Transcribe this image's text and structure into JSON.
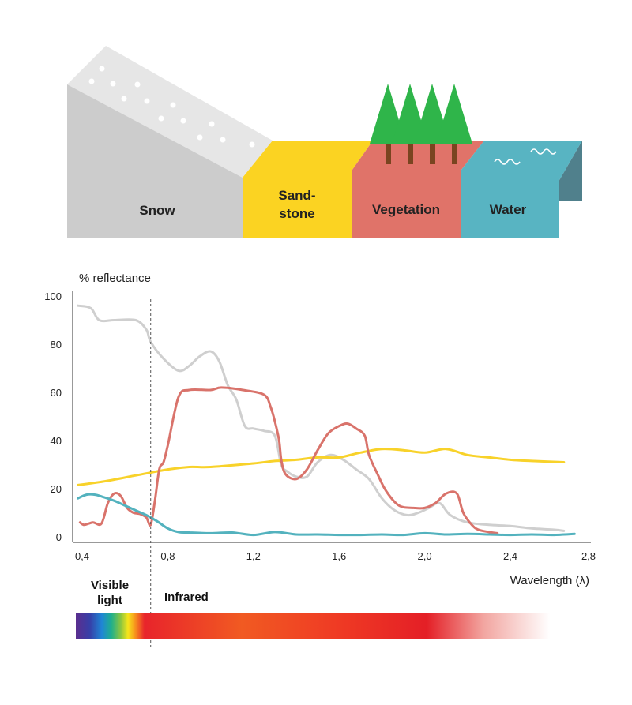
{
  "illustration": {
    "surfaces": [
      {
        "id": "snow",
        "lines": [
          "Snow"
        ],
        "color": "#cccccc"
      },
      {
        "id": "sandstone",
        "lines": [
          "Sand-",
          "stone"
        ],
        "color": "#fbd322"
      },
      {
        "id": "vegetation",
        "lines": [
          "Vegetation"
        ],
        "color": "#e07369"
      },
      {
        "id": "water",
        "lines": [
          "Water"
        ],
        "color": "#58b4c2"
      }
    ],
    "colors": {
      "snow_top": "#e6e6e6",
      "trees": "#2fb54a",
      "trunks": "#7a4420",
      "water_side": "#50808c"
    }
  },
  "chart_data": {
    "type": "line",
    "title": "",
    "ylabel": "% reflectance",
    "xlabel": "Wavelength (λ)",
    "xlim": [
      0.38,
      2.8
    ],
    "ylim": [
      0,
      100
    ],
    "xticks": [
      0.4,
      0.8,
      1.2,
      1.6,
      2.0,
      2.4,
      2.8
    ],
    "xtick_labels": [
      "0,4",
      "0,8",
      "1,2",
      "1,6",
      "2,0",
      "2,4",
      "2,8"
    ],
    "yticks": [
      0,
      20,
      40,
      60,
      80,
      100
    ],
    "ytick_labels": [
      "0",
      "20",
      "40",
      "60",
      "80",
      "100"
    ],
    "visible_boundary_x": 0.72,
    "series": [
      {
        "id": "snow",
        "color": "#cfcfcf",
        "x": [
          0.38,
          0.44,
          0.48,
          0.55,
          0.65,
          0.7,
          0.72,
          0.78,
          0.85,
          0.9,
          0.95,
          1.0,
          1.04,
          1.08,
          1.12,
          1.16,
          1.2,
          1.25,
          1.3,
          1.33,
          1.36,
          1.4,
          1.45,
          1.5,
          1.56,
          1.62,
          1.68,
          1.74,
          1.8,
          1.86,
          1.92,
          1.97,
          2.02,
          2.07,
          2.12,
          2.2,
          2.3,
          2.4,
          2.5,
          2.6,
          2.65
        ],
        "y": [
          96,
          95,
          90,
          90,
          90,
          86,
          81,
          74,
          69,
          71,
          75,
          77,
          73,
          63,
          57,
          46,
          45,
          44,
          42,
          30,
          27,
          25,
          25,
          31,
          34,
          32,
          28,
          24,
          16,
          11,
          9,
          10,
          12,
          14,
          9,
          6,
          5,
          4.5,
          3.5,
          3,
          2.5
        ]
      },
      {
        "id": "sandstone",
        "color": "#f8d22a",
        "x": [
          0.38,
          0.5,
          0.65,
          0.8,
          0.9,
          1.0,
          1.2,
          1.3,
          1.4,
          1.5,
          1.6,
          1.7,
          1.8,
          1.9,
          2.0,
          2.1,
          2.2,
          2.3,
          2.4,
          2.5,
          2.65
        ],
        "y": [
          21.5,
          23,
          25.5,
          28,
          29,
          29,
          30.5,
          31.5,
          32,
          33,
          33,
          35,
          36.5,
          36,
          35,
          36.5,
          34,
          33,
          32,
          31.5,
          31
        ]
      },
      {
        "id": "vegetation",
        "color": "#d9736b",
        "x": [
          0.39,
          0.41,
          0.45,
          0.49,
          0.52,
          0.55,
          0.58,
          0.61,
          0.64,
          0.67,
          0.7,
          0.72,
          0.74,
          0.76,
          0.78,
          0.8,
          0.85,
          0.9,
          1.0,
          1.05,
          1.15,
          1.25,
          1.28,
          1.3,
          1.32,
          1.33,
          1.35,
          1.4,
          1.45,
          1.5,
          1.55,
          1.6,
          1.64,
          1.68,
          1.72,
          1.74,
          1.78,
          1.82,
          1.88,
          1.95,
          2.0,
          2.05,
          2.1,
          2.15,
          2.18,
          2.22,
          2.25,
          2.3,
          2.34
        ],
        "y": [
          6,
          5,
          6,
          5.5,
          14,
          18,
          17,
          12,
          10,
          9.5,
          8,
          5,
          15,
          28,
          31,
          38,
          58,
          61,
          61,
          62,
          61,
          59,
          54,
          48,
          40,
          32,
          26,
          24,
          28,
          36,
          43,
          46,
          47,
          45,
          42,
          34,
          26,
          19,
          13,
          12,
          12,
          14,
          18,
          18,
          10,
          5,
          3,
          2,
          1.5
        ]
      },
      {
        "id": "water",
        "color": "#53b2be",
        "x": [
          0.38,
          0.42,
          0.46,
          0.5,
          0.55,
          0.6,
          0.65,
          0.7,
          0.75,
          0.8,
          0.85,
          0.9,
          1.0,
          1.1,
          1.2,
          1.3,
          1.4,
          1.5,
          1.6,
          1.7,
          1.8,
          1.9,
          2.0,
          2.1,
          2.2,
          2.3,
          2.4,
          2.5,
          2.6,
          2.7
        ],
        "y": [
          16,
          17.5,
          17.5,
          16.5,
          15,
          13,
          11,
          9,
          6.5,
          3.5,
          2,
          1.8,
          1.5,
          1.8,
          0.8,
          2,
          1,
          1,
          0.8,
          0.8,
          1,
          0.8,
          1.5,
          1,
          1.2,
          1,
          0.8,
          1,
          0.8,
          1.2
        ]
      }
    ]
  },
  "bands": {
    "visible_label_lines": [
      "Visible",
      "light"
    ],
    "infrared_label": "Infrared"
  }
}
